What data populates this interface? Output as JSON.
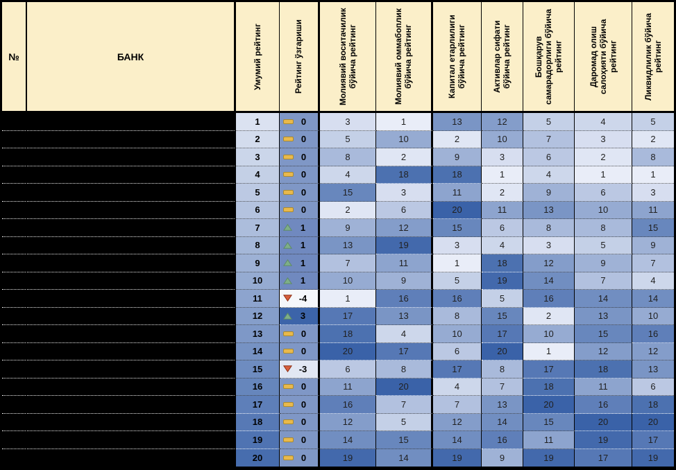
{
  "chart_data": {
    "type": "table",
    "bank_names_redacted": true,
    "columns": [
      "№",
      "БАНК",
      "Умумий рейтинг",
      "Рейтинг ўзгариши",
      "Молиявий воситачилик бўйича рейтинг",
      "Молиявий оммабоплик бўйича рейтинг",
      "Капитал етарлилиги бўйича рейтинг",
      "Активлар сифати бўйича рейтинг",
      "Бошқарув самарадорлиги бўйича рейтинг",
      "Даромад олиш салоҳияти бўйича рейтинг",
      "Ликвидлилик бўйича рейтинг"
    ],
    "rows": [
      {
        "overall": 1,
        "change": 0,
        "ranks": [
          3,
          1,
          13,
          12,
          5,
          4,
          5
        ]
      },
      {
        "overall": 2,
        "change": 0,
        "ranks": [
          5,
          10,
          2,
          10,
          7,
          3,
          2
        ]
      },
      {
        "overall": 3,
        "change": 0,
        "ranks": [
          8,
          2,
          9,
          3,
          6,
          2,
          8
        ]
      },
      {
        "overall": 4,
        "change": 0,
        "ranks": [
          4,
          18,
          18,
          1,
          4,
          1,
          1
        ]
      },
      {
        "overall": 5,
        "change": 0,
        "ranks": [
          15,
          3,
          11,
          2,
          9,
          6,
          3
        ]
      },
      {
        "overall": 6,
        "change": 0,
        "ranks": [
          2,
          6,
          20,
          11,
          13,
          10,
          11
        ]
      },
      {
        "overall": 7,
        "change": 1,
        "ranks": [
          9,
          12,
          15,
          6,
          8,
          8,
          15
        ]
      },
      {
        "overall": 8,
        "change": 1,
        "ranks": [
          13,
          19,
          3,
          4,
          3,
          5,
          9
        ]
      },
      {
        "overall": 9,
        "change": 1,
        "ranks": [
          7,
          11,
          1,
          18,
          12,
          9,
          7
        ]
      },
      {
        "overall": 10,
        "change": 1,
        "ranks": [
          10,
          9,
          5,
          19,
          14,
          7,
          4
        ]
      },
      {
        "overall": 11,
        "change": -4,
        "ranks": [
          1,
          16,
          16,
          5,
          16,
          14,
          14
        ]
      },
      {
        "overall": 12,
        "change": 3,
        "ranks": [
          17,
          13,
          8,
          15,
          2,
          13,
          10
        ]
      },
      {
        "overall": 13,
        "change": 0,
        "ranks": [
          18,
          4,
          10,
          17,
          10,
          15,
          16
        ]
      },
      {
        "overall": 14,
        "change": 0,
        "ranks": [
          20,
          17,
          6,
          20,
          1,
          12,
          12
        ]
      },
      {
        "overall": 15,
        "change": -3,
        "ranks": [
          6,
          8,
          17,
          8,
          17,
          18,
          13
        ]
      },
      {
        "overall": 16,
        "change": 0,
        "ranks": [
          11,
          20,
          4,
          7,
          18,
          11,
          6
        ]
      },
      {
        "overall": 17,
        "change": 0,
        "ranks": [
          16,
          7,
          7,
          13,
          20,
          16,
          18
        ]
      },
      {
        "overall": 18,
        "change": 0,
        "ranks": [
          12,
          5,
          12,
          14,
          15,
          20,
          20
        ]
      },
      {
        "overall": 19,
        "change": 0,
        "ranks": [
          14,
          15,
          14,
          16,
          11,
          19,
          17
        ]
      },
      {
        "overall": 20,
        "change": 0,
        "ranks": [
          19,
          14,
          19,
          9,
          19,
          17,
          19
        ]
      }
    ]
  },
  "colors": {
    "header_bg": "#FBEFC9",
    "redacted_bg": "#000000",
    "rank_scale_min": "#E9EDF8",
    "rank_scale_max": "#3A62A8",
    "overall_scale_min": "#DBE2F1",
    "overall_scale_max": "#476DAE",
    "change_cell_colors": {
      "-4": "#F5F7FB",
      "-3": "#E2E7F3",
      "0": "#7F97C6",
      "1": "#7089BF",
      "3": "#3C64A9"
    },
    "icon_up_fill": "#7EAF88",
    "icon_up_border": "#5F8A68",
    "icon_down_fill": "#D75F3D",
    "icon_down_border": "#903016",
    "icon_dash_fill": "#E9B94C",
    "icon_dash_border": "#A98A2F"
  }
}
